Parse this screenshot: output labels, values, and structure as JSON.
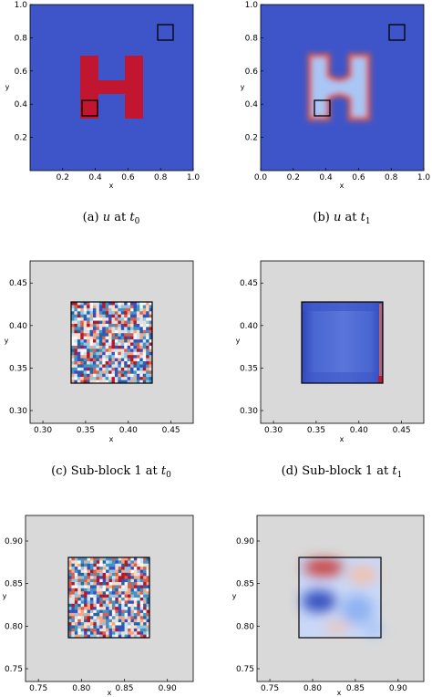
{
  "figure": {
    "panels": [
      {
        "id": "a",
        "caption": {
          "label": "(a)",
          "var": "u",
          "text": "at",
          "t": "t",
          "sub": "0"
        },
        "xlabel": "x",
        "ylabel": "y",
        "xticks": [
          "0.2",
          "0.4",
          "0.6",
          "0.8",
          "1.0"
        ],
        "yticks": [
          "0.2",
          "0.4",
          "0.6",
          "0.8",
          "1.0"
        ]
      },
      {
        "id": "b",
        "caption": {
          "label": "(b)",
          "var": "u",
          "text": "at",
          "t": "t",
          "sub": "1"
        },
        "xlabel": "x",
        "ylabel": "y",
        "xticks": [
          "0.0",
          "0.2",
          "0.4",
          "0.6",
          "0.8",
          "1.0"
        ],
        "yticks": [
          "0.2",
          "0.4",
          "0.6",
          "0.8",
          "1.0"
        ]
      },
      {
        "id": "c",
        "caption": {
          "label": "(c)",
          "text": "Sub-block 1 at",
          "t": "t",
          "sub": "0"
        },
        "xlabel": "x",
        "ylabel": "y",
        "xticks": [
          "0.30",
          "0.35",
          "0.40",
          "0.45"
        ],
        "yticks": [
          "0.30",
          "0.35",
          "0.40",
          "0.45"
        ]
      },
      {
        "id": "d",
        "caption": {
          "label": "(d)",
          "text": "Sub-block 1 at",
          "t": "t",
          "sub": "1"
        },
        "xlabel": "x",
        "ylabel": "y",
        "xticks": [
          "0.30",
          "0.35",
          "0.40",
          "0.45"
        ],
        "yticks": [
          "0.30",
          "0.35",
          "0.40",
          "0.45"
        ]
      },
      {
        "id": "e",
        "xlabel": "x",
        "ylabel": "y",
        "xticks": [
          "0.75",
          "0.80",
          "0.85",
          "0.90"
        ],
        "yticks": [
          "0.75",
          "0.80",
          "0.85",
          "0.90"
        ]
      },
      {
        "id": "f",
        "xlabel": "x",
        "ylabel": "y",
        "xticks": [
          "0.75",
          "0.80",
          "0.85",
          "0.90"
        ],
        "yticks": [
          "0.75",
          "0.80",
          "0.85",
          "0.90"
        ]
      }
    ],
    "colors": {
      "field_blue": "#3e55c9",
      "field_red": "#c11530",
      "light_blue": "#a9c6f5",
      "padding_gray": "#d9d9d9"
    }
  }
}
